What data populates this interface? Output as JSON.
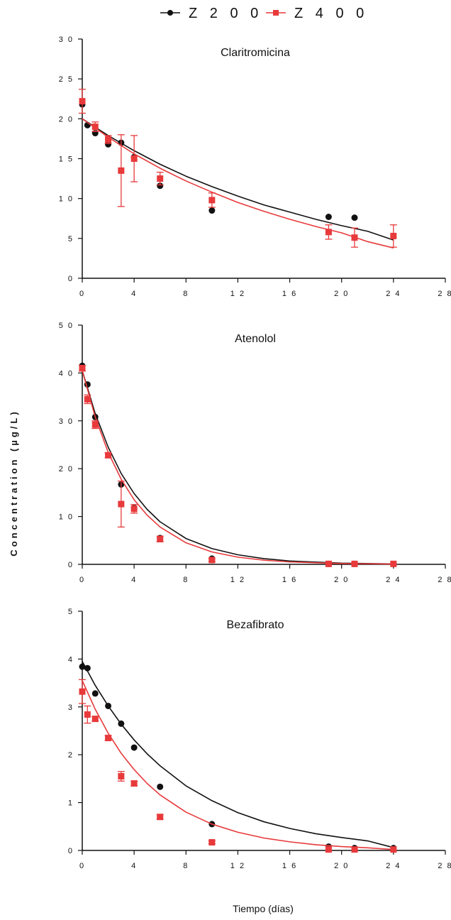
{
  "colors": {
    "z200": "#111111",
    "z400": "#e8393b"
  },
  "chart_data": {
    "type": "scatter",
    "xlabel": "Tiempo (días)",
    "ylabel": "Concentration (µg/L)",
    "legend": {
      "placement": "top-center",
      "entries": [
        "Z 2 0 0",
        "Z 4 0 0"
      ]
    },
    "grid": false,
    "panels": [
      {
        "title": "Claritromicina",
        "xlim": [
          0,
          28
        ],
        "ylim": [
          0,
          30
        ],
        "xticks": [
          "0",
          "4",
          "8",
          "1 2",
          "1 6",
          "2 0",
          "2 4",
          "2 8"
        ],
        "yticks": [
          "0",
          "5",
          "1 0",
          "1 5",
          "2 0",
          "2 5",
          "3 0"
        ],
        "series": [
          {
            "name": "Z 2 0 0",
            "marker": "circle",
            "x": [
              0,
              0.4,
              1,
              2,
              3,
              4,
              6,
              10,
              19,
              21
            ],
            "y": [
              21.8,
              19.2,
              18.2,
              16.8,
              17,
              15.2,
              11.6,
              8.5,
              7.7,
              7.6
            ],
            "fit": {
              "x": [
                0,
                2,
                4,
                6,
                8,
                10,
                12,
                14,
                16,
                18,
                20,
                22,
                24
              ],
              "y": [
                20.0,
                17.9,
                16.0,
                14.3,
                12.8,
                11.5,
                10.3,
                9.2,
                8.3,
                7.4,
                6.6,
                5.9,
                4.8
              ]
            }
          },
          {
            "name": "Z 4 0 0",
            "marker": "square",
            "x": [
              0,
              1,
              2,
              3,
              4,
              6,
              10,
              19,
              21,
              24
            ],
            "y": [
              22.2,
              19,
              17.4,
              13.5,
              15,
              12.5,
              9.8,
              5.8,
              5.1,
              5.3
            ],
            "err": [
              1.5,
              0.6,
              0.5,
              4.5,
              2.9,
              0.8,
              0.9,
              0.9,
              1.2,
              1.4
            ],
            "fit": {
              "x": [
                0,
                2,
                4,
                6,
                8,
                10,
                12,
                14,
                16,
                18,
                20,
                22,
                24
              ],
              "y": [
                20.0,
                17.7,
                15.6,
                13.8,
                12.2,
                10.8,
                9.5,
                8.4,
                7.4,
                6.5,
                5.7,
                4.6,
                3.8
              ]
            }
          }
        ]
      },
      {
        "title": "Atenolol",
        "xlim": [
          0,
          28
        ],
        "ylim": [
          0,
          50
        ],
        "xticks": [
          "0",
          "4",
          "8",
          "1 2",
          "1 6",
          "2 0",
          "2 4",
          "2 8"
        ],
        "yticks": [
          "0",
          "1 0",
          "2 0",
          "3 0",
          "4 0",
          "5 0"
        ],
        "series": [
          {
            "name": "Z 2 0 0",
            "marker": "circle",
            "x": [
              0,
              0.4,
              1,
              3,
              4,
              6,
              10,
              19,
              21,
              24
            ],
            "y": [
              41.5,
              37.6,
              30.8,
              16.7,
              11.8,
              5.5,
              1.2,
              0.1,
              0.1,
              0.1
            ],
            "fit": {
              "x": [
                0,
                1,
                2,
                3,
                4,
                5,
                6,
                8,
                10,
                12,
                14,
                16,
                20,
                24
              ],
              "y": [
                40.5,
                31.5,
                24.5,
                19.0,
                14.8,
                11.5,
                8.9,
                5.4,
                3.3,
                2.0,
                1.2,
                0.7,
                0.26,
                0.09
              ]
            }
          },
          {
            "name": "Z 4 0 0",
            "marker": "square",
            "x": [
              0,
              0.4,
              1,
              2,
              3,
              4,
              6,
              10,
              19,
              21,
              24
            ],
            "y": [
              41,
              34.5,
              29.2,
              22.8,
              12.6,
              11.6,
              5.3,
              0.9,
              0.1,
              0.1,
              0.1
            ],
            "err": [
              0.6,
              0.9,
              0.8,
              0.5,
              4.8,
              0.9,
              0.6,
              0.3,
              0,
              0,
              0
            ],
            "fit": {
              "x": [
                0,
                1,
                2,
                3,
                4,
                5,
                6,
                8,
                10,
                12,
                14,
                16,
                20,
                24
              ],
              "y": [
                40.5,
                30.8,
                23.4,
                17.8,
                13.5,
                10.3,
                7.8,
                4.5,
                2.6,
                1.5,
                0.87,
                0.5,
                0.17,
                0.06
              ]
            }
          }
        ]
      },
      {
        "title": "Bezafibrato",
        "xlim": [
          0,
          28
        ],
        "ylim": [
          0,
          5
        ],
        "xticks": [
          "0",
          "4",
          "8",
          "1 2",
          "1 6",
          "2 0",
          "2 4",
          "2 8"
        ],
        "yticks": [
          "0",
          "1",
          "2",
          "3",
          "4",
          "5"
        ],
        "series": [
          {
            "name": "Z 2 0 0",
            "marker": "circle",
            "x": [
              0,
              0.4,
              1,
              2,
              3,
              4,
              6,
              10,
              19,
              21,
              24
            ],
            "y": [
              3.84,
              3.81,
              3.28,
              3.02,
              2.65,
              2.15,
              1.33,
              0.55,
              0.08,
              0.05,
              0.05
            ],
            "fit": {
              "x": [
                0,
                1,
                2,
                3,
                4,
                5,
                6,
                8,
                10,
                12,
                14,
                16,
                18,
                20,
                22,
                24
              ],
              "y": [
                3.95,
                3.45,
                3.02,
                2.64,
                2.31,
                2.02,
                1.77,
                1.35,
                1.04,
                0.79,
                0.6,
                0.46,
                0.35,
                0.27,
                0.2,
                0.06
              ]
            }
          },
          {
            "name": "Z 4 0 0",
            "marker": "square",
            "x": [
              0,
              0.4,
              1,
              2,
              3,
              4,
              6,
              10,
              19,
              21,
              24
            ],
            "y": [
              3.32,
              2.84,
              2.75,
              2.35,
              1.55,
              1.4,
              0.7,
              0.17,
              0.02,
              0.02,
              0.02
            ],
            "err": [
              0.25,
              0.18,
              0.05,
              0.05,
              0.1,
              0.05,
              0.05,
              0.03,
              0,
              0,
              0
            ],
            "fit": {
              "x": [
                0,
                1,
                2,
                3,
                4,
                5,
                6,
                8,
                10,
                12,
                14,
                16,
                18,
                20,
                22,
                24
              ],
              "y": [
                3.55,
                2.95,
                2.45,
                2.03,
                1.69,
                1.4,
                1.16,
                0.8,
                0.55,
                0.38,
                0.26,
                0.18,
                0.12,
                0.08,
                0.055,
                0.02
              ]
            }
          }
        ]
      }
    ]
  }
}
